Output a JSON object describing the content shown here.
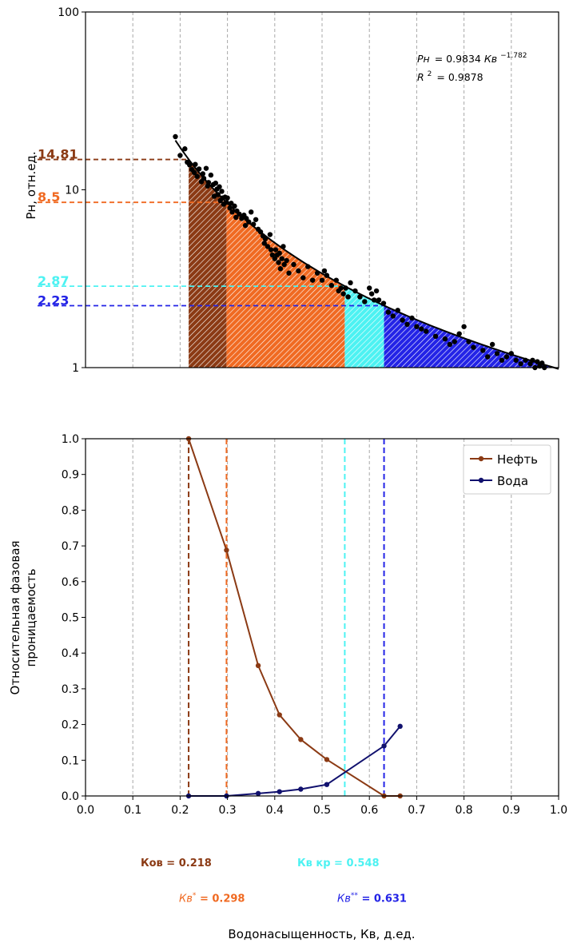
{
  "colors": {
    "kov": "#8b3a14",
    "kv_star": "#f06a22",
    "kv_kr": "#4df2f2",
    "kv_2star": "#2323e6",
    "oil": "#8b3a14",
    "water": "#11116e",
    "points": "#000000",
    "grid": "#a8a8a8"
  },
  "chart_data": [
    {
      "type": "scatter",
      "yscale": "log",
      "xlim": [
        0.0,
        1.0
      ],
      "ylim": [
        1,
        100
      ],
      "ylabel": "Рн, отн.ед.",
      "yticks": [
        "1",
        "10",
        "100"
      ],
      "grid": "vertical dashed",
      "equation": {
        "lhs": "Рн",
        "rhs": "= 0.9834",
        "var": "Кв",
        "exp": "−1.782",
        "r2_label": "R",
        "r2_sup": "2",
        "r2_val": "= 0.9878"
      },
      "fit": {
        "a": 0.9834,
        "b": -1.782,
        "x_range": [
          0.19,
          1.0
        ]
      },
      "markers": [
        {
          "id": "kov",
          "x": 0.218,
          "y": 14.81,
          "label": "14.81"
        },
        {
          "id": "kv_star",
          "x": 0.298,
          "y": 8.5,
          "label": "8.5"
        },
        {
          "id": "kv_kr",
          "x": 0.548,
          "y": 2.87,
          "label": "2.87"
        },
        {
          "id": "kv_2star",
          "x": 0.631,
          "y": 2.23,
          "label": "2.23"
        }
      ],
      "points": [
        [
          0.19,
          19.9
        ],
        [
          0.2,
          15.6
        ],
        [
          0.21,
          17.0
        ],
        [
          0.215,
          14.3
        ],
        [
          0.22,
          13.8
        ],
        [
          0.225,
          13.0
        ],
        [
          0.23,
          12.5
        ],
        [
          0.232,
          13.9
        ],
        [
          0.236,
          11.9
        ],
        [
          0.24,
          13.1
        ],
        [
          0.245,
          11.1
        ],
        [
          0.248,
          12.3
        ],
        [
          0.25,
          11.6
        ],
        [
          0.255,
          13.2
        ],
        [
          0.258,
          10.5
        ],
        [
          0.26,
          11.0
        ],
        [
          0.265,
          12.1
        ],
        [
          0.27,
          10.7
        ],
        [
          0.272,
          9.2
        ],
        [
          0.275,
          10.9
        ],
        [
          0.278,
          10.1
        ],
        [
          0.28,
          9.4
        ],
        [
          0.283,
          10.4
        ],
        [
          0.285,
          8.7
        ],
        [
          0.288,
          9.8
        ],
        [
          0.29,
          9.0
        ],
        [
          0.292,
          8.3
        ],
        [
          0.295,
          9.1
        ],
        [
          0.298,
          8.5
        ],
        [
          0.3,
          9.0
        ],
        [
          0.305,
          7.9
        ],
        [
          0.308,
          8.4
        ],
        [
          0.31,
          7.5
        ],
        [
          0.315,
          8.1
        ],
        [
          0.318,
          7.0
        ],
        [
          0.32,
          7.6
        ],
        [
          0.325,
          7.3
        ],
        [
          0.33,
          6.9
        ],
        [
          0.335,
          7.2
        ],
        [
          0.338,
          6.3
        ],
        [
          0.34,
          6.9
        ],
        [
          0.345,
          6.6
        ],
        [
          0.35,
          7.5
        ],
        [
          0.355,
          6.4
        ],
        [
          0.36,
          6.8
        ],
        [
          0.365,
          6.0
        ],
        [
          0.37,
          5.8
        ],
        [
          0.375,
          5.5
        ],
        [
          0.378,
          5.0
        ],
        [
          0.38,
          5.3
        ],
        [
          0.385,
          4.8
        ],
        [
          0.39,
          5.6
        ],
        [
          0.392,
          4.6
        ],
        [
          0.395,
          4.3
        ],
        [
          0.4,
          4.1
        ],
        [
          0.402,
          4.6
        ],
        [
          0.405,
          4.3
        ],
        [
          0.408,
          3.9
        ],
        [
          0.41,
          4.4
        ],
        [
          0.412,
          3.6
        ],
        [
          0.415,
          4.1
        ],
        [
          0.418,
          4.8
        ],
        [
          0.42,
          3.8
        ],
        [
          0.425,
          4.0
        ],
        [
          0.43,
          3.4
        ],
        [
          0.44,
          3.8
        ],
        [
          0.45,
          3.5
        ],
        [
          0.46,
          3.2
        ],
        [
          0.47,
          3.7
        ],
        [
          0.48,
          3.1
        ],
        [
          0.49,
          3.4
        ],
        [
          0.5,
          3.1
        ],
        [
          0.505,
          3.5
        ],
        [
          0.51,
          3.3
        ],
        [
          0.52,
          2.9
        ],
        [
          0.53,
          3.1
        ],
        [
          0.535,
          2.7
        ],
        [
          0.54,
          2.8
        ],
        [
          0.545,
          2.6
        ],
        [
          0.55,
          2.8
        ],
        [
          0.555,
          2.5
        ],
        [
          0.56,
          3.0
        ],
        [
          0.57,
          2.7
        ],
        [
          0.58,
          2.5
        ],
        [
          0.59,
          2.35
        ],
        [
          0.6,
          2.8
        ],
        [
          0.605,
          2.6
        ],
        [
          0.61,
          2.4
        ],
        [
          0.615,
          2.7
        ],
        [
          0.62,
          2.4
        ],
        [
          0.63,
          2.3
        ],
        [
          0.64,
          2.05
        ],
        [
          0.65,
          1.95
        ],
        [
          0.66,
          2.1
        ],
        [
          0.67,
          1.85
        ],
        [
          0.68,
          1.75
        ],
        [
          0.69,
          1.9
        ],
        [
          0.7,
          1.7
        ],
        [
          0.71,
          1.65
        ],
        [
          0.72,
          1.6
        ],
        [
          0.74,
          1.5
        ],
        [
          0.76,
          1.45
        ],
        [
          0.77,
          1.35
        ],
        [
          0.78,
          1.4
        ],
        [
          0.79,
          1.55
        ],
        [
          0.8,
          1.7
        ],
        [
          0.81,
          1.4
        ],
        [
          0.82,
          1.3
        ],
        [
          0.84,
          1.25
        ],
        [
          0.85,
          1.15
        ],
        [
          0.86,
          1.35
        ],
        [
          0.87,
          1.2
        ],
        [
          0.88,
          1.1
        ],
        [
          0.89,
          1.15
        ],
        [
          0.9,
          1.2
        ],
        [
          0.91,
          1.1
        ],
        [
          0.92,
          1.05
        ],
        [
          0.93,
          1.1
        ],
        [
          0.94,
          1.05
        ],
        [
          0.945,
          1.1
        ],
        [
          0.95,
          1.0
        ],
        [
          0.955,
          1.08
        ],
        [
          0.96,
          1.02
        ],
        [
          0.965,
          1.06
        ],
        [
          0.97,
          1.0
        ]
      ]
    },
    {
      "type": "line",
      "xlim": [
        0.0,
        1.0
      ],
      "ylim": [
        0.0,
        1.0
      ],
      "xticks": [
        "0.0",
        "0.1",
        "0.2",
        "0.3",
        "0.4",
        "0.5",
        "0.6",
        "0.7",
        "0.8",
        "0.9",
        "1.0"
      ],
      "yticks": [
        "0.0",
        "0.1",
        "0.2",
        "0.3",
        "0.4",
        "0.5",
        "0.6",
        "0.7",
        "0.8",
        "0.9",
        "1.0"
      ],
      "ylabel_line1": "Относительная фазовая",
      "ylabel_line2": "проницаемость",
      "xlabel": "Водонасыщенность, Кв, д.ед.",
      "legend_position": "top-right",
      "grid": "vertical dashed",
      "series": [
        {
          "name": "Нефть",
          "color_key": "oil",
          "x": [
            0.218,
            0.298,
            0.365,
            0.41,
            0.455,
            0.51,
            0.631,
            0.665
          ],
          "y": [
            1.0,
            0.688,
            0.365,
            0.227,
            0.158,
            0.102,
            0.0,
            0.0
          ]
        },
        {
          "name": "Вода",
          "color_key": "water",
          "x": [
            0.218,
            0.298,
            0.365,
            0.41,
            0.455,
            0.51,
            0.631,
            0.665
          ],
          "y": [
            0.0,
            0.0,
            0.007,
            0.012,
            0.019,
            0.032,
            0.14,
            0.195
          ]
        }
      ],
      "vlines": [
        {
          "id": "kov",
          "x": 0.218
        },
        {
          "id": "kv_star",
          "x": 0.298
        },
        {
          "id": "kv_kr",
          "x": 0.548
        },
        {
          "id": "kv_2star",
          "x": 0.631
        }
      ]
    }
  ],
  "annotations": {
    "kov": "Ков = 0.218",
    "kv_kr": "Кв кр = 0.548",
    "kv_star_var": "Кв",
    "kv_star_sup": "*",
    "kv_star_val": "= 0.298",
    "kv_2star_var": "Кв",
    "kv_2star_sup": "**",
    "kv_2star_val": "= 0.631"
  }
}
